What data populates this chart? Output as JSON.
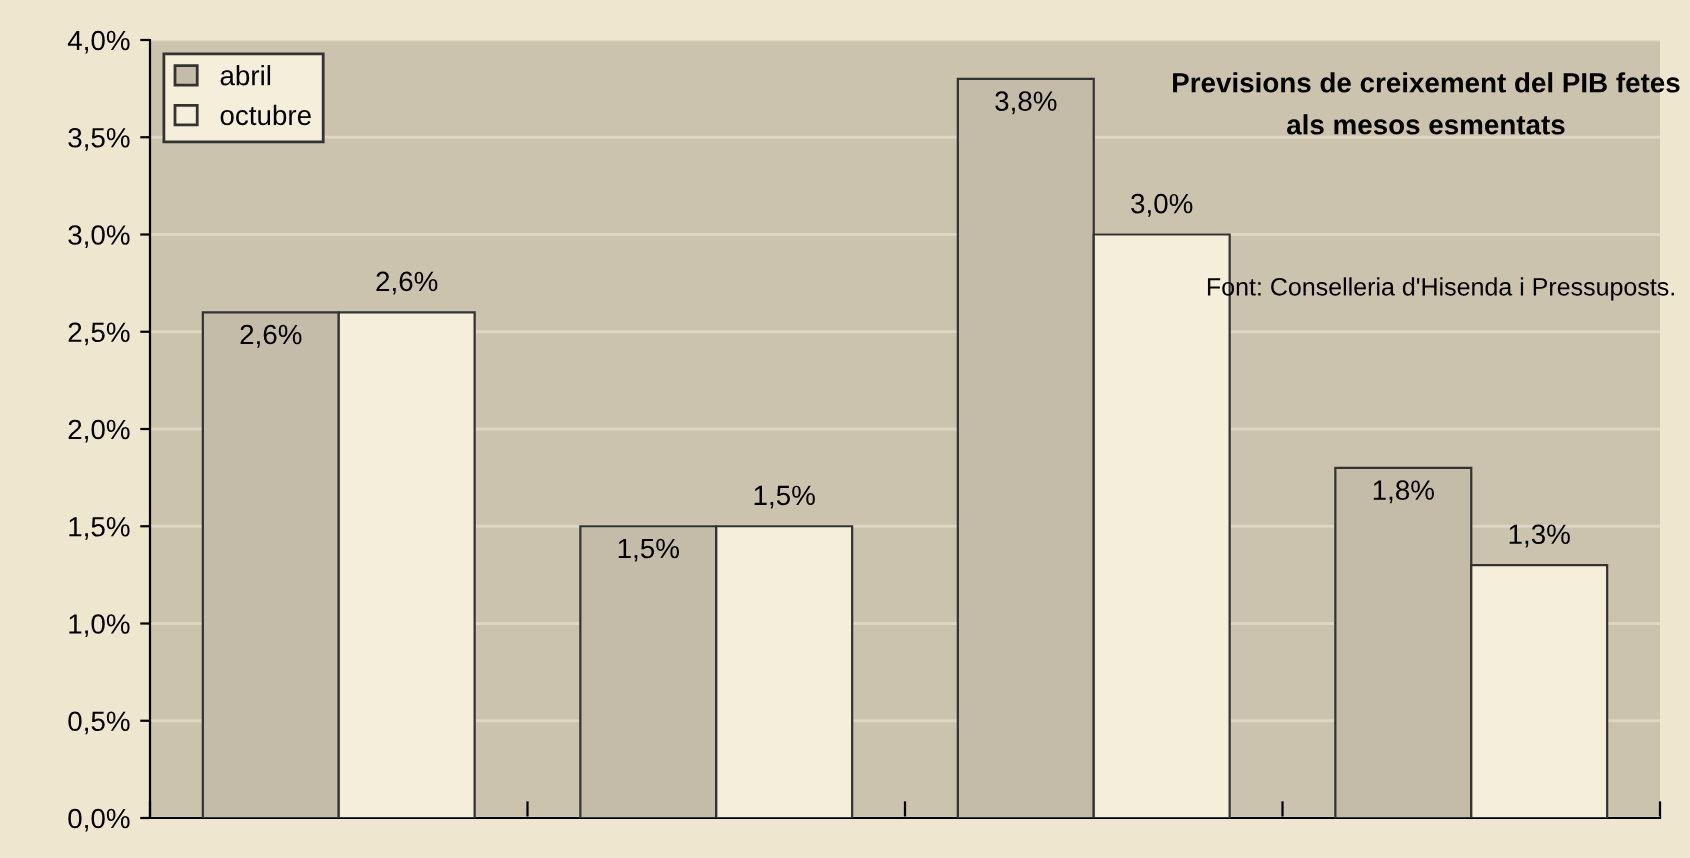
{
  "chart_data": {
    "type": "bar",
    "categories": [
      null,
      null,
      null,
      null
    ],
    "series": [
      {
        "name": "abril",
        "color": "#c4bca8",
        "values": [
          2.6,
          1.5,
          3.8,
          1.8
        ],
        "value_labels": [
          "2,6%",
          "1,5%",
          "3,8%",
          "1,8%"
        ]
      },
      {
        "name": "octubre",
        "color": "#f5eedb",
        "values": [
          2.6,
          1.5,
          3.0,
          1.3
        ],
        "value_labels": [
          "2,6%",
          "1,5%",
          "3,0%",
          "1,3%"
        ]
      }
    ],
    "ylim": [
      0,
      4
    ],
    "yticks": [
      {
        "value": 0,
        "label": "0,0%"
      },
      {
        "value": 0.5,
        "label": "0,5%"
      },
      {
        "value": 1,
        "label": "1,0%"
      },
      {
        "value": 1.5,
        "label": "1,5%"
      },
      {
        "value": 2,
        "label": "2,0%"
      },
      {
        "value": 2.5,
        "label": "2,5%"
      },
      {
        "value": 3,
        "label": "3,0%"
      },
      {
        "value": 3.5,
        "label": "3,5%"
      },
      {
        "value": 4,
        "label": "4,0%"
      }
    ],
    "grid": "y",
    "legend": "top left",
    "annotations": [
      "Previsions de creixement del PIB fetes\nals mesos esmentats",
      "Font: Conselleria d'Hisenda i Pressuposts."
    ]
  }
}
